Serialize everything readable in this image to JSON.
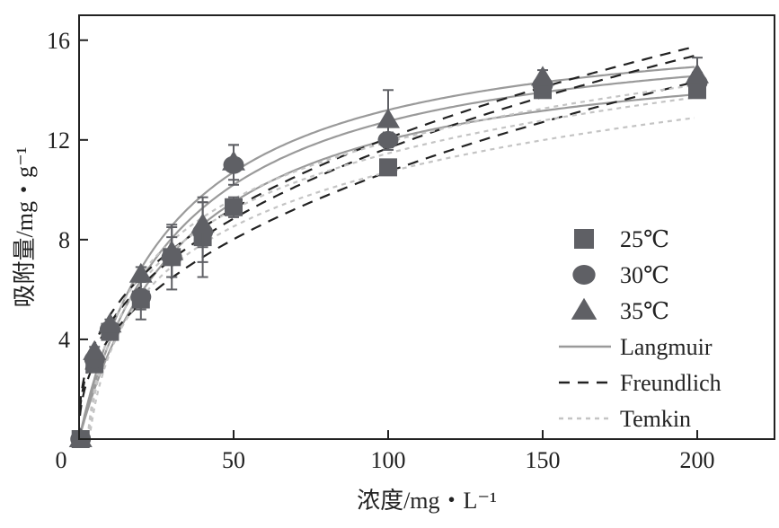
{
  "chart_data": {
    "type": "scatter",
    "xlabel": "浓度/mg・L⁻¹",
    "ylabel": "吸附量/mg・g⁻¹",
    "xlim": [
      0,
      225
    ],
    "ylim": [
      0,
      17
    ],
    "xticks": [
      0,
      50,
      100,
      150,
      200
    ],
    "yticks": [
      4,
      8,
      12,
      16
    ],
    "legend_position": "bottom-right",
    "x": [
      0.5,
      5,
      10,
      20,
      30,
      40,
      50,
      100,
      150,
      200
    ],
    "series": [
      {
        "name": "25℃",
        "marker": "square",
        "color": "#5f6065",
        "values": [
          0,
          3.0,
          4.3,
          5.6,
          7.3,
          8.1,
          9.3,
          10.9,
          14.0,
          14.0
        ],
        "errors": [
          0,
          0.2,
          0.2,
          0.4,
          0.8,
          1.6,
          0.4,
          0.3,
          0.3,
          0.2
        ]
      },
      {
        "name": "30℃",
        "marker": "circle",
        "color": "#5f6065",
        "values": [
          0,
          3.2,
          4.4,
          5.7,
          7.3,
          8.3,
          11.0,
          12.0,
          14.2,
          14.3
        ],
        "errors": [
          0,
          0.2,
          0.2,
          0.9,
          1.3,
          1.2,
          0.8,
          0.3,
          0.3,
          0.4
        ]
      },
      {
        "name": "35℃",
        "marker": "triangle",
        "color": "#5f6065",
        "values": [
          0,
          3.5,
          4.6,
          6.6,
          7.5,
          8.6,
          11.1,
          12.8,
          14.5,
          14.6
        ],
        "errors": [
          0,
          0.2,
          0.2,
          0.3,
          1.0,
          0.9,
          0.7,
          1.2,
          0.3,
          0.7
        ]
      }
    ],
    "fits": [
      {
        "name": "Langmuir",
        "style": "solid",
        "color": "#9a9a9a",
        "curves": [
          {
            "qm": 16.3,
            "K": 0.028
          },
          {
            "qm": 17.0,
            "K": 0.03
          },
          {
            "qm": 17.2,
            "K": 0.033
          }
        ]
      },
      {
        "name": "Freundlich",
        "style": "dash",
        "color": "#222222",
        "curves": [
          {
            "Kf": 1.55,
            "n_inv": 0.42
          },
          {
            "Kf": 1.85,
            "n_inv": 0.4
          },
          {
            "Kf": 2.05,
            "n_inv": 0.385
          }
        ]
      },
      {
        "name": "Temkin",
        "style": "dot",
        "color": "#c4c4c4",
        "curves": [
          {
            "B": 3.15,
            "A": 0.3
          },
          {
            "B": 3.25,
            "A": 0.34
          },
          {
            "B": 3.3,
            "A": 0.37
          }
        ]
      }
    ]
  }
}
